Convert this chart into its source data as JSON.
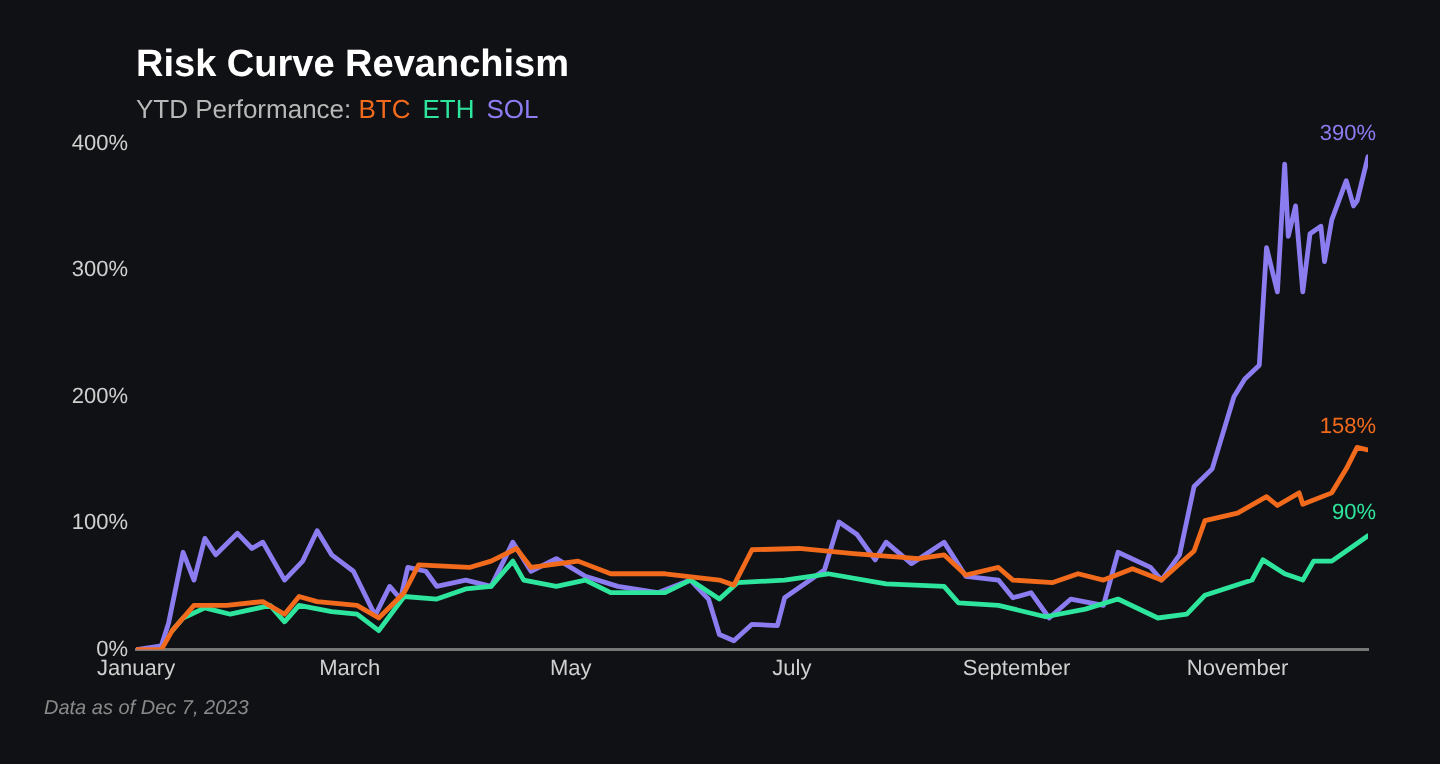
{
  "chart_data": {
    "type": "line",
    "title": "Risk Curve Revanchism",
    "subtitle": "YTD Performance:",
    "legend": "top left",
    "xlim": [
      "2023-01-01",
      "2023-12-07"
    ],
    "xticks": [
      {
        "value": "2023-01-01",
        "label": "January"
      },
      {
        "value": "2023-03-01",
        "label": "March"
      },
      {
        "value": "2023-05-01",
        "label": "May"
      },
      {
        "value": "2023-07-01",
        "label": "July"
      },
      {
        "value": "2023-09-01",
        "label": "September"
      },
      {
        "value": "2023-11-01",
        "label": "November"
      }
    ],
    "ylim": [
      0,
      400
    ],
    "yticks": [
      {
        "value": 0,
        "label": "0%"
      },
      {
        "value": 100,
        "label": "100%"
      },
      {
        "value": 200,
        "label": "200%"
      },
      {
        "value": 300,
        "label": "300%"
      },
      {
        "value": 400,
        "label": "400%"
      }
    ],
    "series": [
      {
        "name": "BTC",
        "color": "#f26b1d",
        "x": [
          "2023-01-01",
          "2023-01-08",
          "2023-01-11",
          "2023-01-17",
          "2023-01-26",
          "2023-02-05",
          "2023-02-11",
          "2023-02-15",
          "2023-02-20",
          "2023-03-03",
          "2023-03-09",
          "2023-03-16",
          "2023-03-20",
          "2023-04-03",
          "2023-04-09",
          "2023-04-16",
          "2023-04-20",
          "2023-05-03",
          "2023-05-12",
          "2023-05-27",
          "2023-06-11",
          "2023-06-15",
          "2023-06-20",
          "2023-07-03",
          "2023-07-18",
          "2023-08-05",
          "2023-08-12",
          "2023-08-18",
          "2023-08-27",
          "2023-08-31",
          "2023-09-11",
          "2023-09-18",
          "2023-09-25",
          "2023-10-03",
          "2023-10-11",
          "2023-10-20",
          "2023-10-23",
          "2023-11-01",
          "2023-11-09",
          "2023-11-12",
          "2023-11-18",
          "2023-11-19",
          "2023-11-27",
          "2023-12-01",
          "2023-12-04",
          "2023-12-07"
        ],
        "values": [
          0,
          0,
          15,
          35,
          35,
          38,
          28,
          42,
          38,
          35,
          25,
          45,
          67,
          65,
          70,
          80,
          65,
          70,
          60,
          60,
          55,
          51,
          79,
          80,
          76,
          72,
          75,
          59,
          65,
          55,
          53,
          60,
          55,
          64,
          55,
          78,
          102,
          108,
          121,
          114,
          124,
          115,
          124,
          143,
          160,
          158
        ]
      },
      {
        "name": "ETH",
        "color": "#2ee59d",
        "x": [
          "2023-01-11",
          "2023-01-14",
          "2023-01-20",
          "2023-01-27",
          "2023-02-07",
          "2023-02-11",
          "2023-02-15",
          "2023-02-24",
          "2023-03-03",
          "2023-03-09",
          "2023-03-16",
          "2023-03-25",
          "2023-04-02",
          "2023-04-09",
          "2023-04-15",
          "2023-04-18",
          "2023-04-27",
          "2023-05-05",
          "2023-05-12",
          "2023-05-27",
          "2023-06-03",
          "2023-06-11",
          "2023-06-16",
          "2023-06-29",
          "2023-07-11",
          "2023-07-27",
          "2023-08-12",
          "2023-08-16",
          "2023-08-27",
          "2023-09-09",
          "2023-09-20",
          "2023-09-29",
          "2023-10-10",
          "2023-10-18",
          "2023-10-23",
          "2023-11-05",
          "2023-11-08",
          "2023-11-14",
          "2023-11-19",
          "2023-11-22",
          "2023-11-27",
          "2023-12-02",
          "2023-12-07"
        ],
        "values": [
          15,
          25,
          33,
          28,
          35,
          22,
          35,
          30,
          28,
          15,
          42,
          40,
          48,
          50,
          70,
          55,
          50,
          55,
          45,
          45,
          55,
          40,
          53,
          55,
          60,
          52,
          50,
          37,
          35,
          26,
          32,
          40,
          25,
          28,
          43,
          55,
          71,
          60,
          55,
          70,
          70,
          80,
          90
        ]
      },
      {
        "name": "SOL",
        "color": "#8b7cf0",
        "x": [
          "2023-01-01",
          "2023-01-08",
          "2023-01-10",
          "2023-01-14",
          "2023-01-17",
          "2023-01-20",
          "2023-01-23",
          "2023-01-29",
          "2023-02-02",
          "2023-02-05",
          "2023-02-11",
          "2023-02-16",
          "2023-02-20",
          "2023-02-24",
          "2023-03-02",
          "2023-03-08",
          "2023-03-12",
          "2023-03-15",
          "2023-03-17",
          "2023-03-22",
          "2023-03-25",
          "2023-04-02",
          "2023-04-09",
          "2023-04-15",
          "2023-04-20",
          "2023-04-27",
          "2023-05-05",
          "2023-05-14",
          "2023-05-25",
          "2023-06-03",
          "2023-06-08",
          "2023-06-11",
          "2023-06-15",
          "2023-06-20",
          "2023-06-27",
          "2023-06-29",
          "2023-07-10",
          "2023-07-14",
          "2023-07-19",
          "2023-07-24",
          "2023-07-27",
          "2023-08-03",
          "2023-08-12",
          "2023-08-18",
          "2023-08-27",
          "2023-08-31",
          "2023-09-05",
          "2023-09-10",
          "2023-09-16",
          "2023-09-25",
          "2023-09-29",
          "2023-10-08",
          "2023-10-11",
          "2023-10-16",
          "2023-10-20",
          "2023-10-25",
          "2023-10-31",
          "2023-11-03",
          "2023-11-07",
          "2023-11-09",
          "2023-11-12",
          "2023-11-14",
          "2023-11-15",
          "2023-11-17",
          "2023-11-19",
          "2023-11-21",
          "2023-11-24",
          "2023-11-25",
          "2023-11-27",
          "2023-12-01",
          "2023-12-03",
          "2023-12-04",
          "2023-12-07"
        ],
        "values": [
          0,
          3,
          21,
          77,
          55,
          88,
          75,
          92,
          80,
          85,
          55,
          70,
          94,
          75,
          62,
          27,
          50,
          40,
          65,
          62,
          50,
          55,
          50,
          85,
          62,
          72,
          58,
          50,
          45,
          55,
          40,
          12,
          7,
          20,
          19,
          41,
          63,
          101,
          91,
          71,
          85,
          68,
          85,
          58,
          55,
          41,
          45,
          25,
          40,
          35,
          77,
          65,
          55,
          75,
          129,
          143,
          200,
          214,
          225,
          318,
          283,
          384,
          327,
          351,
          283,
          329,
          335,
          307,
          340,
          371,
          351,
          355,
          390
        ]
      }
    ],
    "annotations": [
      {
        "text": "390%",
        "x": "2023-12-07",
        "y": 390
      },
      {
        "text": "158%",
        "x": "2023-12-07",
        "y": 158
      },
      {
        "text": "90%",
        "x": "2023-12-07",
        "y": 90
      },
      "Data as of Dec 7, 2023"
    ]
  }
}
